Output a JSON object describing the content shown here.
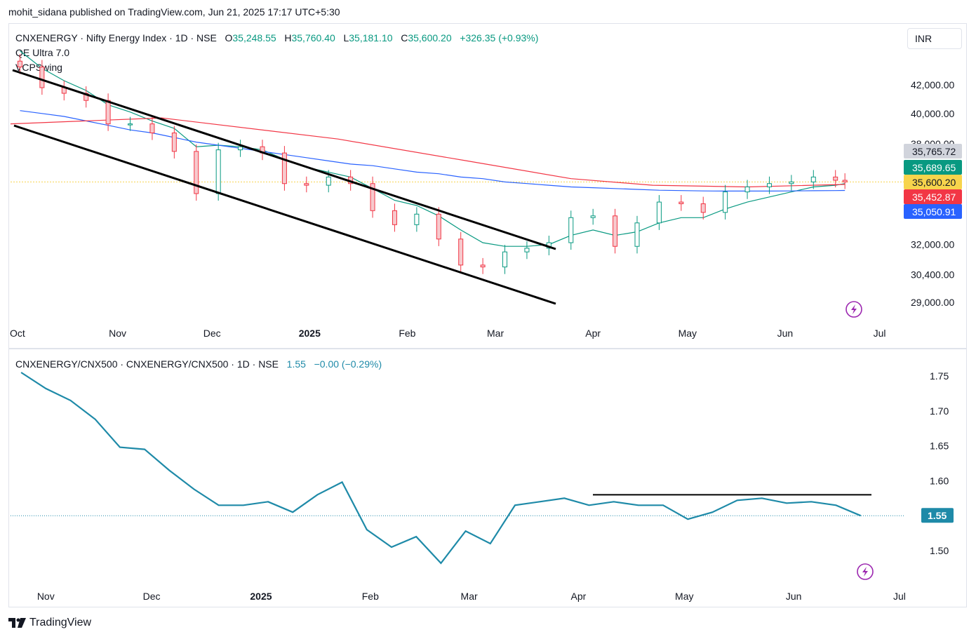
{
  "header": {
    "published": "mohit_sidana published on TradingView.com, Jun 21, 2025 17:17 UTC+5:30"
  },
  "main": {
    "symbol": "CNXENERGY · Nifty Energy Index · 1D · NSE",
    "o_label": "O",
    "o": "35,248.55",
    "h_label": "H",
    "h": "35,760.40",
    "l_label": "L",
    "l": "35,181.10",
    "c_label": "C",
    "c": "35,600.20",
    "change": "+326.35 (+0.93%)",
    "indicators": [
      "QE Ultra 7.0",
      "VCPSwing"
    ],
    "currency": "INR",
    "price_labels": [
      {
        "text": "35,765.72",
        "color": "#d1d4dc",
        "text_color": "#131722"
      },
      {
        "text": "35,689.65",
        "color": "#089981",
        "text_color": "#ffffff"
      },
      {
        "text": "35,600.20",
        "color": "#f7d44c",
        "text_color": "#131722"
      },
      {
        "text": "35,452.87",
        "color": "#f23645",
        "text_color": "#ffffff"
      },
      {
        "text": "35,050.91",
        "color": "#2962ff",
        "text_color": "#ffffff"
      }
    ],
    "time_labels": [
      "Oct",
      "Nov",
      "Dec",
      "2025",
      "Feb",
      "Mar",
      "Apr",
      "May",
      "Jun",
      "Jul"
    ]
  },
  "lower": {
    "legend": "CNXENERGY/CNX500 · CNXENERGY/CNX500 · 1D · NSE",
    "value": "1.55",
    "change": "−0.00 (−0.29%)",
    "last_label": "1.55",
    "time_labels": [
      "Nov",
      "Dec",
      "2025",
      "Feb",
      "Mar",
      "Apr",
      "May",
      "Jun",
      "Jul"
    ]
  },
  "footer": {
    "brand": "TradingView"
  },
  "colors": {
    "up": "#089981",
    "down": "#f23645",
    "ema_blue": "#2962ff",
    "ema_red": "#f23645",
    "ema_green": "#089981",
    "ratio": "#1e8aa8"
  },
  "chart_data": [
    {
      "type": "line",
      "title": "CNXENERGY · Nifty Energy Index · 1D · NSE",
      "ylabel": "INR",
      "y_ticks": [
        29000,
        30400,
        32000,
        38000,
        40000,
        42000
      ],
      "y_tick_labels": [
        "29,000.00",
        "30,400.00",
        "32,000.00",
        "38,000.00",
        "40,000.00",
        "42,000.00"
      ],
      "log_scale": true,
      "ylim": [
        27800,
        45000
      ],
      "x": [
        "2024-10-01",
        "2024-10-08",
        "2024-10-15",
        "2024-10-22",
        "2024-10-29",
        "2024-11-05",
        "2024-11-12",
        "2024-11-19",
        "2024-11-26",
        "2024-12-03",
        "2024-12-10",
        "2024-12-17",
        "2024-12-24",
        "2024-12-31",
        "2025-01-07",
        "2025-01-14",
        "2025-01-21",
        "2025-01-28",
        "2025-02-04",
        "2025-02-11",
        "2025-02-18",
        "2025-02-25",
        "2025-03-04",
        "2025-03-11",
        "2025-03-18",
        "2025-03-25",
        "2025-04-01",
        "2025-04-08",
        "2025-04-15",
        "2025-04-22",
        "2025-04-29",
        "2025-05-06",
        "2025-05-13",
        "2025-05-20",
        "2025-05-27",
        "2025-06-03",
        "2025-06-10",
        "2025-06-17",
        "2025-06-20"
      ],
      "series": [
        {
          "name": "",
          "values": [
            43300,
            41800,
            41400,
            40900,
            39300,
            39300,
            38700,
            37500,
            34900,
            37600,
            37800,
            37400,
            35500,
            35400,
            35900,
            35500,
            33900,
            33100,
            33700,
            32300,
            30900,
            30800,
            31600,
            31800,
            32100,
            33500,
            33600,
            31900,
            33200,
            34400,
            34300,
            33800,
            35000,
            35300,
            35500,
            35600,
            35900,
            35700,
            35600
          ]
        },
        {
          "name": "",
          "values": [
            40200,
            40000,
            39800,
            39500,
            39200,
            38900,
            38700,
            38400,
            38100,
            37900,
            37700,
            37500,
            37300,
            37100,
            36900,
            36700,
            36600,
            36400,
            36200,
            36100,
            35900,
            35800,
            35600,
            35500,
            35400,
            35300,
            35250,
            35200,
            35150,
            35100,
            35080,
            35060,
            35050,
            35050,
            35050,
            35060,
            35070,
            35080,
            35090
          ]
        },
        {
          "name": "",
          "values": [
            44500,
            43200,
            42300,
            41600,
            40600,
            40100,
            39500,
            39000,
            37800,
            37900,
            37800,
            37600,
            37000,
            36500,
            36200,
            35900,
            35200,
            34500,
            34200,
            33600,
            32800,
            32100,
            31900,
            31900,
            32000,
            32500,
            32800,
            32500,
            32700,
            33200,
            33500,
            33500,
            34000,
            34400,
            34700,
            35000,
            35300,
            35400,
            35500
          ]
        }
      ],
      "annotations": [
        "descending channel trendlines"
      ]
    },
    {
      "type": "line",
      "title": "CNXENERGY/CNX500 · CNXENERGY/CNX500 · 1D · NSE",
      "y_ticks": [
        1.5,
        1.55,
        1.6,
        1.65,
        1.7,
        1.75
      ],
      "ylim": [
        1.46,
        1.77
      ],
      "x": [
        "2024-10-25",
        "2024-11-01",
        "2024-11-08",
        "2024-11-15",
        "2024-11-22",
        "2024-11-29",
        "2024-12-06",
        "2024-12-13",
        "2024-12-20",
        "2024-12-27",
        "2025-01-03",
        "2025-01-10",
        "2025-01-17",
        "2025-01-24",
        "2025-01-31",
        "2025-02-07",
        "2025-02-14",
        "2025-02-21",
        "2025-02-28",
        "2025-03-07",
        "2025-03-14",
        "2025-03-21",
        "2025-03-28",
        "2025-04-04",
        "2025-04-11",
        "2025-04-18",
        "2025-04-25",
        "2025-05-02",
        "2025-05-09",
        "2025-05-16",
        "2025-05-23",
        "2025-05-30",
        "2025-06-06",
        "2025-06-13",
        "2025-06-20"
      ],
      "series": [
        {
          "name": "",
          "values": [
            1.755,
            1.732,
            1.715,
            1.688,
            1.648,
            1.645,
            1.615,
            1.588,
            1.565,
            1.565,
            1.57,
            1.555,
            1.58,
            1.598,
            1.53,
            1.505,
            1.52,
            1.482,
            1.528,
            1.51,
            1.565,
            1.57,
            1.575,
            1.565,
            1.57,
            1.565,
            1.565,
            1.545,
            1.555,
            1.572,
            1.575,
            1.568,
            1.57,
            1.565,
            1.55
          ]
        }
      ],
      "annotations": [
        "horizontal resistance line at 1.58"
      ]
    }
  ]
}
